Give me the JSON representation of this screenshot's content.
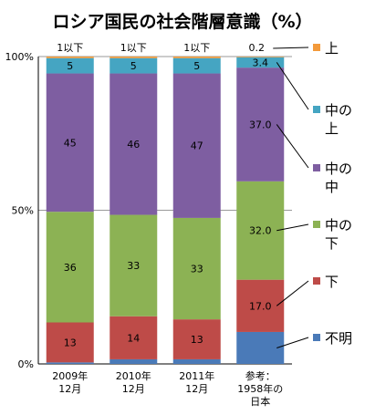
{
  "chart_data": {
    "type": "bar",
    "stacked": true,
    "title": "ロシア国民の社会階層意識（%）",
    "yticks": [
      "0%",
      "50%",
      "100%"
    ],
    "ylim": [
      0,
      100
    ],
    "categories": [
      [
        "2009年",
        "12月"
      ],
      [
        "2010年",
        "12月"
      ],
      [
        "2011年",
        "12月"
      ],
      [
        "参考：",
        "1958年の",
        "日本"
      ]
    ],
    "series": [
      {
        "name": "不明",
        "color": "#4a7ab8",
        "values": [
          0.5,
          1.5,
          1.5,
          10.4
        ],
        "labels": [
          "",
          "",
          "",
          ""
        ]
      },
      {
        "name": "下",
        "color": "#be4b48",
        "values": [
          13,
          14,
          13,
          17.0
        ],
        "labels": [
          "13",
          "14",
          "13",
          "17.0"
        ]
      },
      {
        "name": "中の下",
        "color": "#8cb254",
        "values": [
          36,
          33,
          33,
          32.0
        ],
        "labels": [
          "36",
          "33",
          "33",
          "32.0"
        ]
      },
      {
        "name": "中の中",
        "color": "#7e5ea1",
        "values": [
          45,
          46,
          47,
          37.0
        ],
        "labels": [
          "45",
          "46",
          "47",
          "37.0"
        ]
      },
      {
        "name": "中の上",
        "color": "#45a5c2",
        "values": [
          5,
          5,
          5,
          3.4
        ],
        "labels": [
          "5",
          "5",
          "5",
          "3.4"
        ]
      },
      {
        "name": "上",
        "color": "#f39a3b",
        "values": [
          0.5,
          0.5,
          0.5,
          0.2
        ],
        "labels": [
          "1以下",
          "1以下",
          "1以下",
          "0.2"
        ]
      }
    ],
    "legend": [
      {
        "series": "上",
        "lines": [
          "上"
        ]
      },
      {
        "series": "中の上",
        "lines": [
          "中の",
          "上"
        ]
      },
      {
        "series": "中の中",
        "lines": [
          "中の",
          "中"
        ]
      },
      {
        "series": "中の下",
        "lines": [
          "中の",
          "下"
        ]
      },
      {
        "series": "下",
        "lines": [
          "下"
        ]
      },
      {
        "series": "不明",
        "lines": [
          "不明"
        ]
      }
    ],
    "legend_position": "right",
    "grid": true
  }
}
